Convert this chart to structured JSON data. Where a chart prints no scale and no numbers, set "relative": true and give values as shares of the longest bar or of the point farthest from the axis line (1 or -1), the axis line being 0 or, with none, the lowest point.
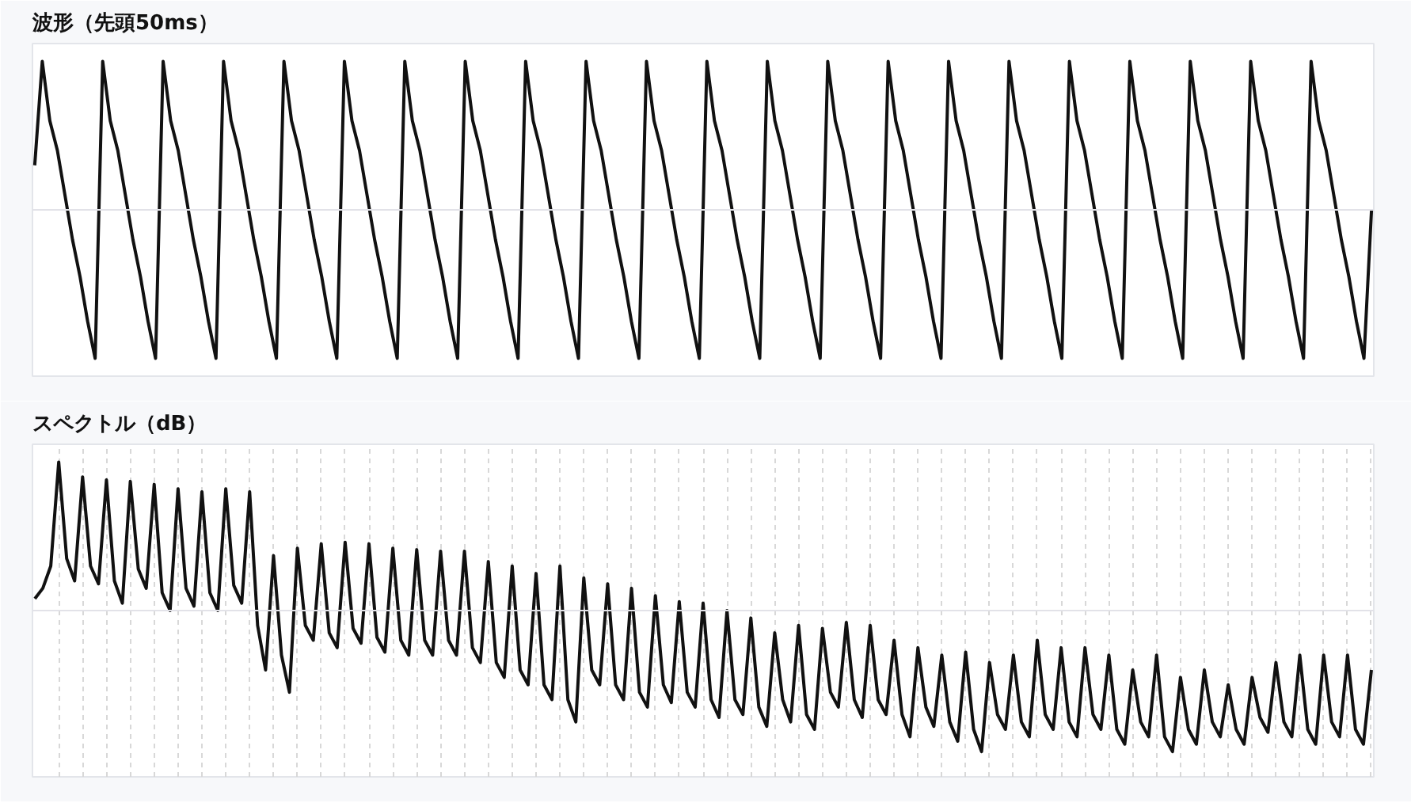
{
  "chart_data": [
    {
      "type": "line",
      "title": "波形（先頭50ms）",
      "relative": true,
      "grid": false,
      "categories": [
        null,
        null,
        null,
        null,
        null,
        null,
        null,
        null,
        null,
        null,
        null,
        null,
        null,
        null,
        null,
        null,
        null,
        null,
        null,
        null,
        null,
        null,
        null,
        null,
        null,
        null,
        null,
        null,
        null,
        null,
        null,
        null,
        null,
        null,
        null,
        null,
        null,
        null,
        null,
        null,
        null,
        null,
        null,
        null,
        null,
        null,
        null,
        null,
        null,
        null,
        null,
        null,
        null,
        null,
        null,
        null,
        null,
        null,
        null,
        null,
        null,
        null,
        null,
        null,
        null,
        null,
        null,
        null,
        null,
        null,
        null,
        null,
        null,
        null,
        null,
        null,
        null,
        null,
        null,
        null,
        null,
        null,
        null,
        null,
        null,
        null,
        null,
        null,
        null,
        null,
        null,
        null,
        null,
        null,
        null,
        null,
        null,
        null,
        null,
        null,
        null,
        null,
        null,
        null,
        null,
        null,
        null,
        null,
        null,
        null,
        null,
        null,
        null,
        null,
        null,
        null,
        null,
        null,
        null,
        null,
        null,
        null,
        null,
        null,
        null,
        null,
        null,
        null,
        null,
        null,
        null,
        null,
        null,
        null,
        null,
        null,
        null,
        null,
        null,
        null,
        null,
        null,
        null,
        null,
        null,
        null,
        null,
        null,
        null,
        null,
        null,
        null,
        null,
        null,
        null,
        null,
        null,
        null,
        null,
        null,
        null,
        null,
        null,
        null,
        null,
        null,
        null,
        null,
        null,
        null,
        null,
        null,
        null,
        null,
        null,
        null,
        null,
        null
      ],
      "series": [
        {
          "color": "#111111",
          "values": [
            0.3,
            1.0,
            0.6,
            0.4,
            0.1,
            -0.2,
            -0.45,
            -0.75,
            -1.0,
            1.0,
            0.6,
            0.4,
            0.1,
            -0.2,
            -0.45,
            -0.75,
            -1.0,
            1.0,
            0.6,
            0.4,
            0.1,
            -0.2,
            -0.45,
            -0.75,
            -1.0,
            1.0,
            0.6,
            0.4,
            0.1,
            -0.2,
            -0.45,
            -0.75,
            -1.0,
            1.0,
            0.6,
            0.4,
            0.1,
            -0.2,
            -0.45,
            -0.75,
            -1.0,
            1.0,
            0.6,
            0.4,
            0.1,
            -0.2,
            -0.45,
            -0.75,
            -1.0,
            1.0,
            0.6,
            0.4,
            0.1,
            -0.2,
            -0.45,
            -0.75,
            -1.0,
            1.0,
            0.6,
            0.4,
            0.1,
            -0.2,
            -0.45,
            -0.75,
            -1.0,
            1.0,
            0.6,
            0.4,
            0.1,
            -0.2,
            -0.45,
            -0.75,
            -1.0,
            1.0,
            0.6,
            0.4,
            0.1,
            -0.2,
            -0.45,
            -0.75,
            -1.0,
            1.0,
            0.6,
            0.4,
            0.1,
            -0.2,
            -0.45,
            -0.75,
            -1.0,
            1.0,
            0.6,
            0.4,
            0.1,
            -0.2,
            -0.45,
            -0.75,
            -1.0,
            1.0,
            0.6,
            0.4,
            0.1,
            -0.2,
            -0.45,
            -0.75,
            -1.0,
            1.0,
            0.6,
            0.4,
            0.1,
            -0.2,
            -0.45,
            -0.75,
            -1.0,
            1.0,
            0.6,
            0.4,
            0.1,
            -0.2,
            -0.45,
            -0.75,
            -1.0,
            1.0,
            0.6,
            0.4,
            0.1,
            -0.2,
            -0.45,
            -0.75,
            -1.0,
            1.0,
            0.6,
            0.4,
            0.1,
            -0.2,
            -0.45,
            -0.75,
            -1.0,
            1.0,
            0.6,
            0.4,
            0.1,
            -0.2,
            -0.45,
            -0.75,
            -1.0,
            1.0,
            0.6,
            0.4,
            0.1,
            -0.2,
            -0.45,
            -0.75,
            -1.0,
            1.0,
            0.6,
            0.4,
            0.1,
            -0.2,
            -0.45,
            -0.75,
            -1.0,
            1.0,
            0.6,
            0.4,
            0.1,
            -0.2,
            -0.45,
            -0.75,
            -1.0,
            1.0,
            0.6,
            0.4,
            0.1,
            -0.2,
            -0.45,
            -0.75,
            -1.0,
            0.0
          ]
        }
      ]
    },
    {
      "type": "line",
      "title": "スペクトル（dB）",
      "relative": true,
      "grid": "x",
      "categories": [
        null,
        null,
        null,
        null,
        null,
        null,
        null,
        null,
        null,
        null,
        null,
        null,
        null,
        null,
        null,
        null,
        null,
        null,
        null,
        null,
        null,
        null,
        null,
        null,
        null,
        null,
        null,
        null,
        null,
        null,
        null,
        null,
        null,
        null,
        null,
        null,
        null,
        null,
        null,
        null,
        null,
        null,
        null,
        null,
        null,
        null,
        null,
        null,
        null,
        null,
        null,
        null,
        null,
        null,
        null,
        null,
        null,
        null,
        null,
        null,
        null,
        null,
        null,
        null,
        null,
        null,
        null,
        null,
        null,
        null,
        null,
        null,
        null,
        null,
        null,
        null,
        null,
        null,
        null,
        null,
        null,
        null,
        null,
        null,
        null,
        null,
        null,
        null,
        null,
        null,
        null,
        null,
        null,
        null,
        null,
        null,
        null,
        null,
        null,
        null,
        null,
        null,
        null,
        null,
        null,
        null,
        null,
        null,
        null,
        null,
        null,
        null,
        null,
        null,
        null,
        null,
        null,
        null,
        null,
        null,
        null,
        null,
        null,
        null,
        null,
        null,
        null,
        null,
        null,
        null,
        null,
        null,
        null,
        null,
        null,
        null,
        null,
        null,
        null,
        null,
        null,
        null,
        null,
        null,
        null,
        null,
        null,
        null,
        null,
        null,
        null,
        null,
        null,
        null,
        null,
        null,
        null,
        null,
        null,
        null,
        null,
        null,
        null,
        null,
        null,
        null,
        null,
        null,
        null
      ],
      "series": [
        {
          "color": "#111111",
          "values": [
            0.08,
            0.15,
            0.3,
            1.0,
            0.35,
            0.2,
            0.9,
            0.3,
            0.18,
            0.88,
            0.2,
            0.05,
            0.87,
            0.28,
            0.15,
            0.85,
            0.12,
            0.0,
            0.82,
            0.15,
            0.03,
            0.8,
            0.12,
            0.0,
            0.82,
            0.17,
            0.05,
            0.8,
            -0.1,
            -0.4,
            0.37,
            -0.3,
            -0.55,
            0.42,
            -0.1,
            -0.2,
            0.45,
            -0.15,
            -0.25,
            0.46,
            -0.12,
            -0.22,
            0.45,
            -0.18,
            -0.28,
            0.42,
            -0.2,
            -0.3,
            0.41,
            -0.2,
            -0.3,
            0.4,
            -0.2,
            -0.3,
            0.4,
            -0.25,
            -0.35,
            0.33,
            -0.35,
            -0.45,
            0.3,
            -0.4,
            -0.5,
            0.25,
            -0.5,
            -0.6,
            0.3,
            -0.6,
            -0.75,
            0.22,
            -0.4,
            -0.5,
            0.18,
            -0.5,
            -0.6,
            0.15,
            -0.55,
            -0.65,
            0.1,
            -0.5,
            -0.62,
            0.06,
            -0.55,
            -0.65,
            0.05,
            -0.6,
            -0.72,
            0.0,
            -0.6,
            -0.7,
            -0.05,
            -0.65,
            -0.78,
            -0.15,
            -0.6,
            -0.75,
            -0.1,
            -0.7,
            -0.8,
            -0.12,
            -0.55,
            -0.65,
            -0.08,
            -0.6,
            -0.72,
            -0.1,
            -0.6,
            -0.7,
            -0.2,
            -0.7,
            -0.85,
            -0.25,
            -0.65,
            -0.78,
            -0.3,
            -0.75,
            -0.88,
            -0.28,
            -0.8,
            -0.95,
            -0.35,
            -0.7,
            -0.8,
            -0.3,
            -0.75,
            -0.85,
            -0.2,
            -0.7,
            -0.8,
            -0.25,
            -0.75,
            -0.85,
            -0.25,
            -0.7,
            -0.8,
            -0.3,
            -0.8,
            -0.9,
            -0.4,
            -0.75,
            -0.85,
            -0.3,
            -0.85,
            -0.95,
            -0.45,
            -0.8,
            -0.9,
            -0.4,
            -0.75,
            -0.85,
            -0.5,
            -0.8,
            -0.9,
            -0.45,
            -0.72,
            -0.82,
            -0.35,
            -0.75,
            -0.85,
            -0.3,
            -0.8,
            -0.9,
            -0.3,
            -0.75,
            -0.85,
            -0.3,
            -0.8,
            -0.9,
            -0.4
          ]
        }
      ]
    }
  ]
}
